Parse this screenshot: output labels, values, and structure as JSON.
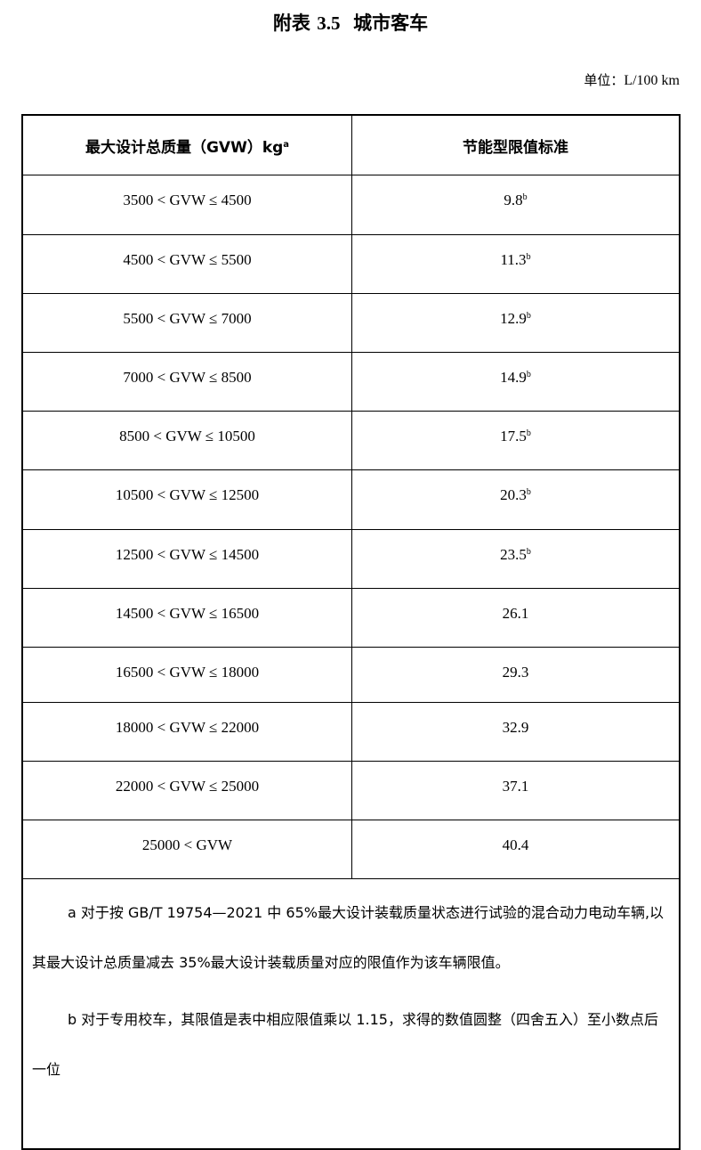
{
  "title": {
    "prefix": "附表",
    "number": "3.5",
    "name": "城市客车"
  },
  "unit": {
    "label": "单位：",
    "value": "L/100 km"
  },
  "table": {
    "headers": [
      {
        "text": "最大设计总质量（GVW）kg",
        "sup": "a"
      },
      {
        "text": "节能型限值标准",
        "sup": ""
      }
    ],
    "rows": [
      {
        "range": "3500 < GVW ≤ 4500",
        "limit": "9.8",
        "note": "b"
      },
      {
        "range": "4500 < GVW ≤ 5500",
        "limit": "11.3",
        "note": "b"
      },
      {
        "range": "5500 < GVW ≤ 7000",
        "limit": "12.9",
        "note": "b"
      },
      {
        "range": "7000 < GVW ≤ 8500",
        "limit": "14.9",
        "note": "b"
      },
      {
        "range": "8500 < GVW ≤ 10500",
        "limit": "17.5",
        "note": "b"
      },
      {
        "range": "10500 < GVW ≤ 12500",
        "limit": "20.3",
        "note": "b"
      },
      {
        "range": "12500 < GVW ≤ 14500",
        "limit": "23.5",
        "note": "b"
      },
      {
        "range": "14500 < GVW ≤ 16500",
        "limit": "26.1",
        "note": ""
      },
      {
        "range": "16500 < GVW ≤ 18000",
        "limit": "29.3",
        "note": ""
      },
      {
        "range": "18000 < GVW ≤ 22000",
        "limit": "32.9",
        "note": ""
      },
      {
        "range": "22000 < GVW ≤ 25000",
        "limit": "37.1",
        "note": ""
      },
      {
        "range": "25000 < GVW",
        "limit": "40.4",
        "note": ""
      }
    ],
    "footnotes": [
      "a 对于按 GB/T 19754—2021 中 65%最大设计装载质量状态进行试验的混合动力电动车辆,以其最大设计总质量减去 35%最大设计装载质量对应的限值作为该车辆限值。",
      "b 对于专用校车，其限值是表中相应限值乘以 1.15，求得的数值圆整（四舍五入）至小数点后一位"
    ]
  }
}
